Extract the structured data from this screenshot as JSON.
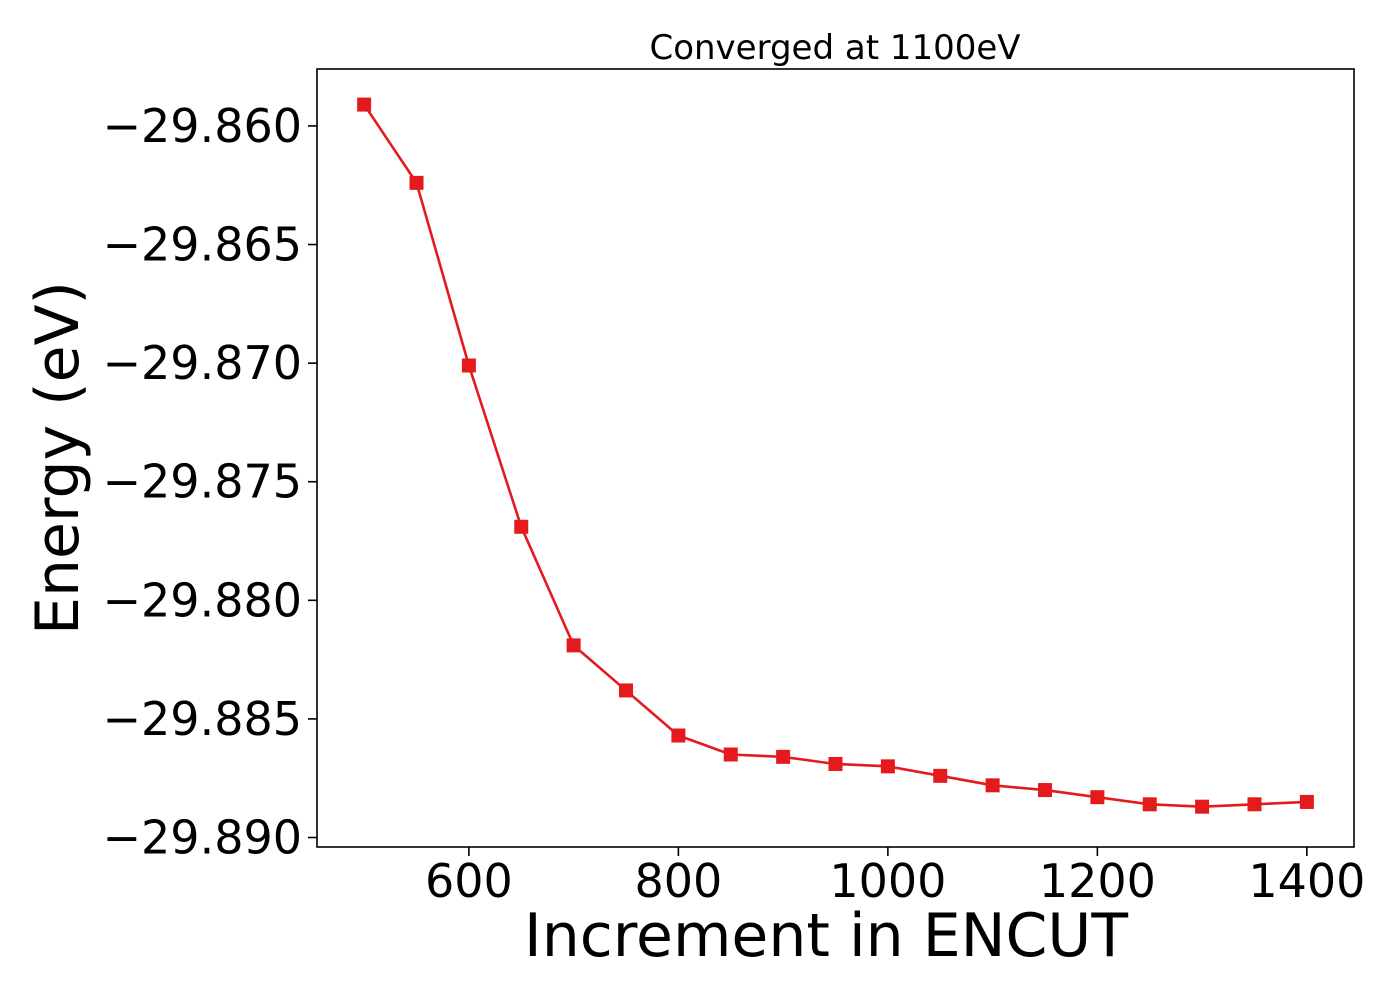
{
  "chart_data": {
    "type": "line",
    "title": "Converged at 1100eV",
    "xlabel": "Increment in ENCUT",
    "ylabel": "Energy (eV)",
    "xlim": [
      455,
      1445
    ],
    "ylim": [
      -29.8904,
      -29.8576
    ],
    "xticks": [
      600,
      800,
      1000,
      1200,
      1400
    ],
    "yticks": [
      -29.86,
      -29.865,
      -29.87,
      -29.875,
      -29.88,
      -29.885,
      -29.89
    ],
    "ytick_labels": [
      "−29.860",
      "−29.865",
      "−29.870",
      "−29.875",
      "−29.880",
      "−29.885",
      "−29.890"
    ],
    "grid": false,
    "series": [
      {
        "color": "#e41a1c",
        "marker": "square",
        "x": [
          500,
          550,
          600,
          650,
          700,
          750,
          800,
          850,
          900,
          950,
          1000,
          1050,
          1100,
          1150,
          1200,
          1250,
          1300,
          1350,
          1400
        ],
        "y": [
          -29.8591,
          -29.8624,
          -29.8701,
          -29.8769,
          -29.8819,
          -29.8838,
          -29.8857,
          -29.8865,
          -29.8866,
          -29.8869,
          -29.887,
          -29.8874,
          -29.8878,
          -29.888,
          -29.8883,
          -29.8886,
          -29.8887,
          -29.8886,
          -29.8885
        ]
      }
    ]
  }
}
